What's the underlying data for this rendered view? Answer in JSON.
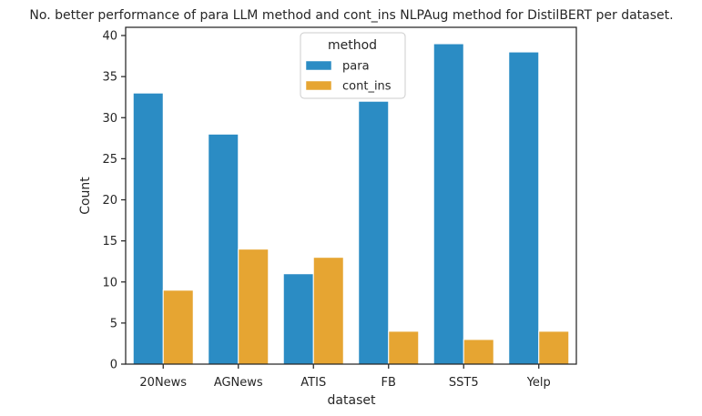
{
  "chart_data": {
    "type": "bar",
    "title": "No. better performance of para LLM method and cont_ins NLPAug method for DistilBERT per dataset.",
    "xlabel": "dataset",
    "ylabel": "Count",
    "categories": [
      "20News",
      "AGNews",
      "ATIS",
      "FB",
      "SST5",
      "Yelp"
    ],
    "series": [
      {
        "name": "para",
        "values": [
          33,
          28,
          11,
          32,
          39,
          38
        ],
        "color": "#2b8cc4"
      },
      {
        "name": "cont_ins",
        "values": [
          9,
          14,
          13,
          4,
          3,
          4
        ],
        "color": "#e6a532"
      }
    ],
    "ylim": [
      0,
      41
    ],
    "yticks": [
      0,
      5,
      10,
      15,
      20,
      25,
      30,
      35,
      40
    ],
    "legend": {
      "title": "method",
      "placement": "upper center"
    },
    "grid": false
  }
}
